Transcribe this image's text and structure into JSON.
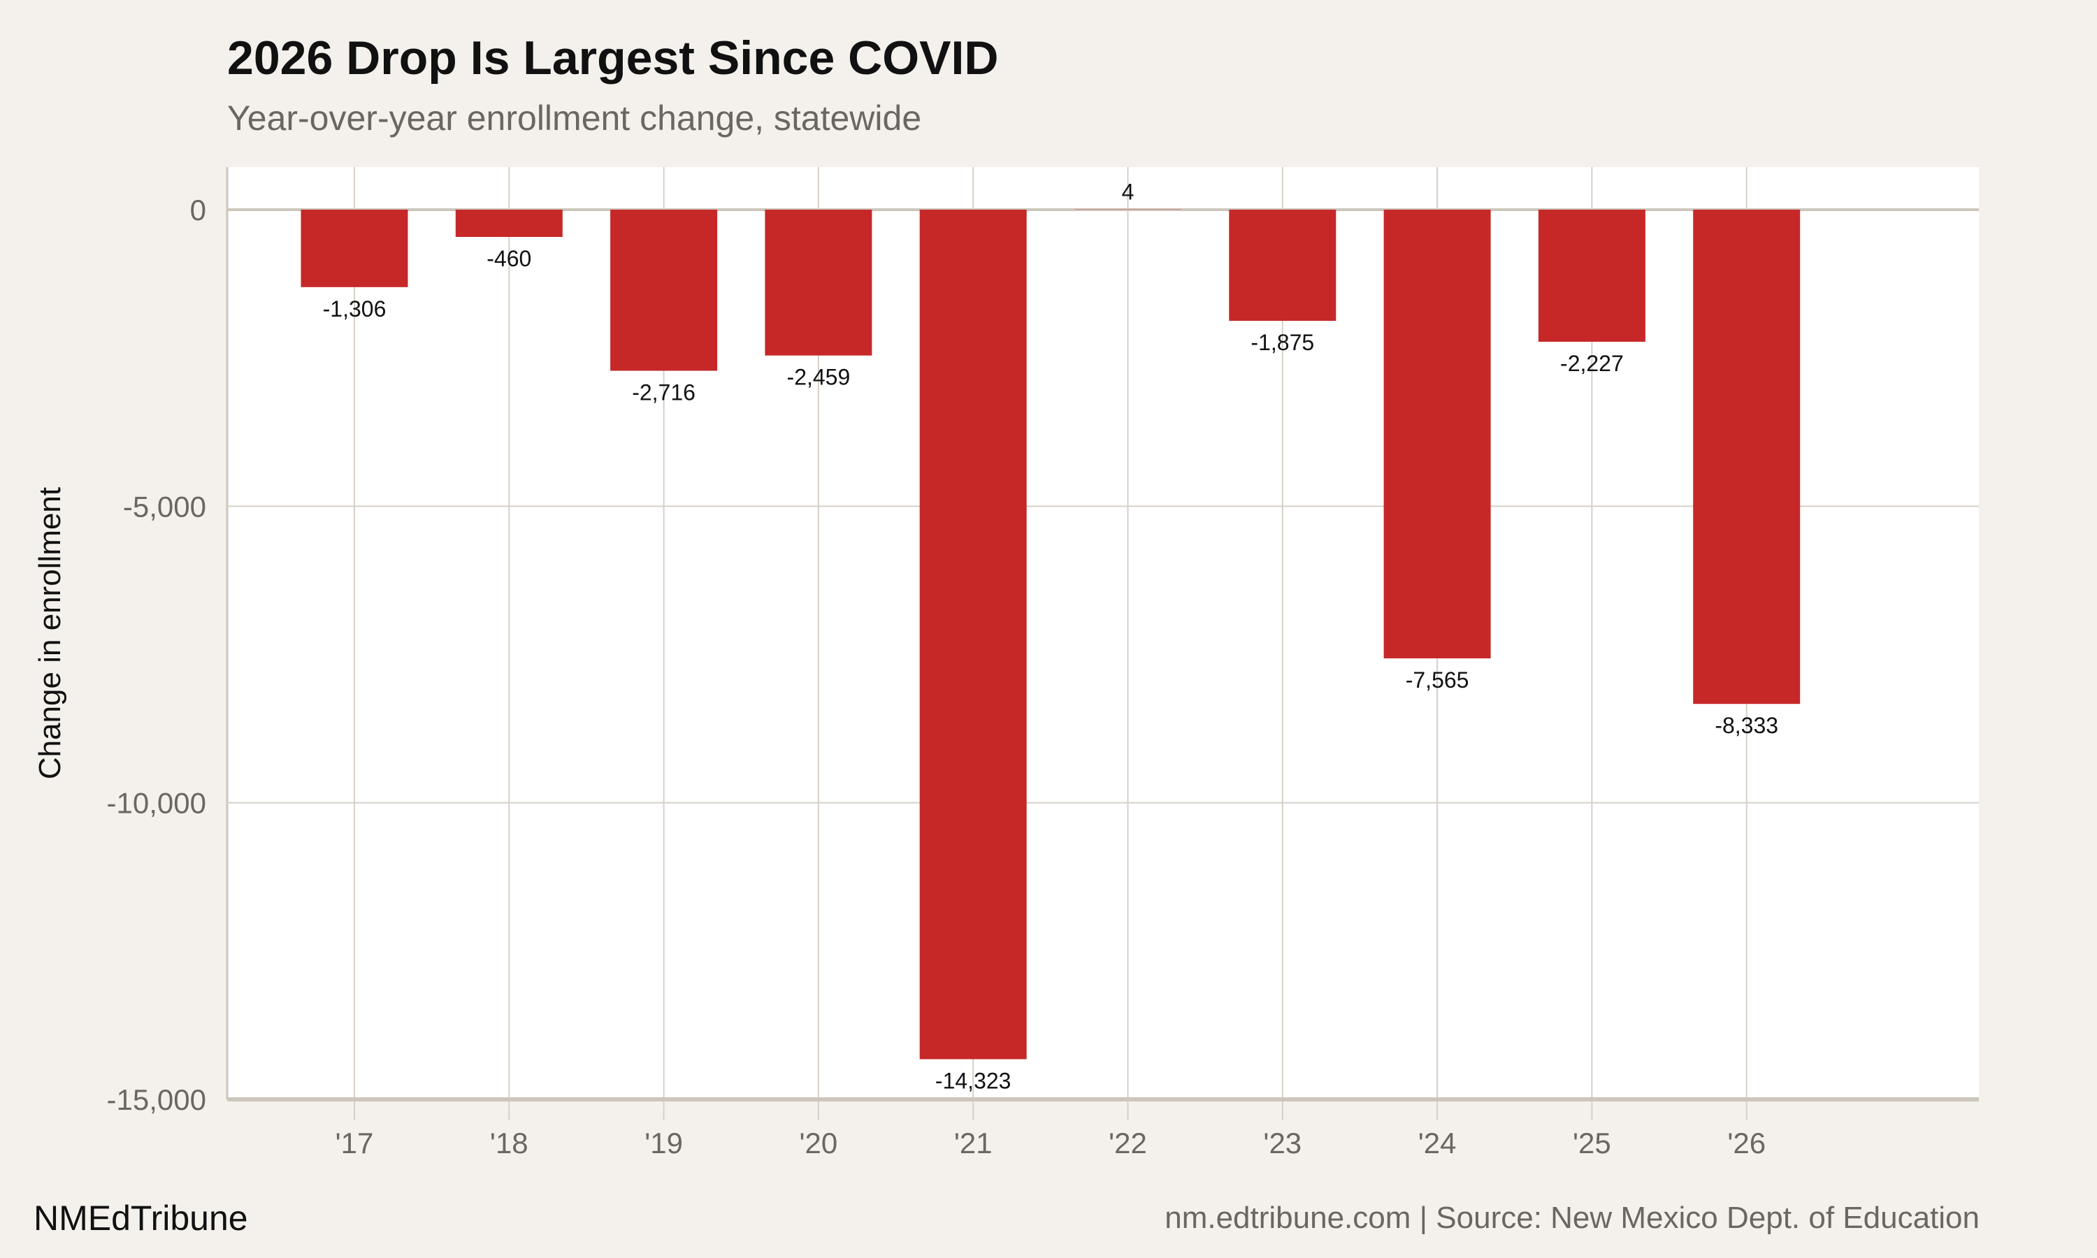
{
  "chart_data": {
    "type": "bar",
    "title": "2026 Drop Is Largest Since COVID",
    "subtitle": "Year-over-year enrollment change, statewide",
    "xlabel": "",
    "ylabel": "Change in enrollment",
    "categories": [
      "'17",
      "'18",
      "'19",
      "'20",
      "'21",
      "'22",
      "'23",
      "'24",
      "'25",
      "'26"
    ],
    "values": [
      -1306,
      -460,
      -2716,
      -2459,
      -14323,
      4,
      -1875,
      -7565,
      -2227,
      -8333
    ],
    "value_labels": [
      "-1,306",
      "-460",
      "-2,716",
      "-2,459",
      "-14,323",
      "4",
      "-1,875",
      "-7,565",
      "-2,227",
      "-8,333"
    ],
    "ylim": [
      -15000,
      700
    ],
    "yticks": [
      0,
      -5000,
      -10000,
      -15000
    ],
    "ytick_labels": [
      "0",
      "-5,000",
      "-10,000",
      "-15,000"
    ],
    "grid": true,
    "legend": "none",
    "bar_color": "#c62828"
  },
  "footer": {
    "brand": "NMEdTribune",
    "source": "nm.edtribune.com | Source: New Mexico Dept. of Education"
  }
}
